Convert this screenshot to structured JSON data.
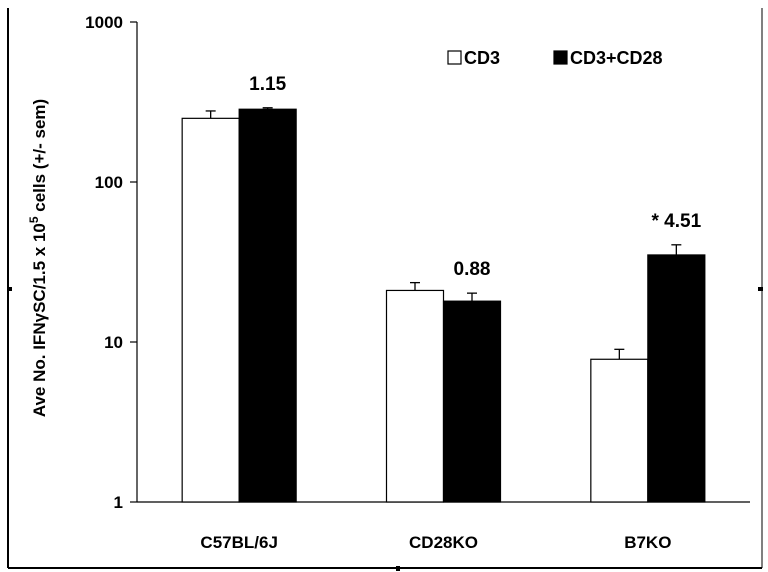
{
  "chart_data": {
    "type": "bar",
    "yscale": "log",
    "ylim": [
      1,
      1000
    ],
    "y_ticks": [
      "1",
      "10",
      "100",
      "1000"
    ],
    "ylabel_parts": [
      "Ave No. IFN",
      "γ",
      "SC/1.5 x 10",
      "5",
      " cells (+/- sem)"
    ],
    "categories": [
      "C57BL/6J",
      "CD28KO",
      "B7KO"
    ],
    "series": [
      {
        "name": "CD3",
        "color": "#ffffff",
        "values": [
          250,
          21,
          7.8
        ],
        "errors": [
          28,
          2.5,
          1.2
        ]
      },
      {
        "name": "CD3+CD28",
        "color": "#000000",
        "values": [
          285,
          18,
          35
        ],
        "errors": [
          6,
          2.2,
          5.5
        ]
      }
    ],
    "annotations": [
      "1.15",
      "0.88",
      "* 4.51"
    ],
    "legend_position": "top-right",
    "grid": false
  }
}
